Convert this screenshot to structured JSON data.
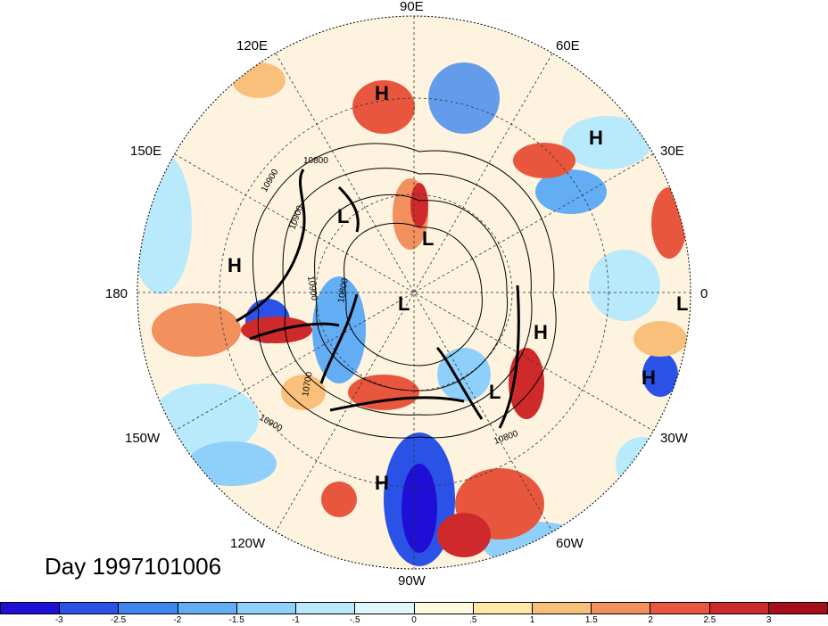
{
  "date_label": "Day 1997101006",
  "lon_labels": {
    "n90E": "90E",
    "n60E": "60E",
    "n30E": "30E",
    "n0": "0",
    "n30W": "30W",
    "n60W": "60W",
    "n90W": "90W",
    "n120W": "120W",
    "n150W": "150W",
    "n180": "180",
    "n150E": "150E",
    "n120E": "120E"
  },
  "pressure_centers": {
    "h1": "H",
    "h2": "H",
    "h3": "H",
    "h4": "H",
    "h5": "H",
    "h6": "H",
    "l1": "L",
    "l2": "L",
    "l3": "L",
    "l4": "L",
    "l5": "L"
  },
  "contour_labels": {
    "c1": "10800",
    "c2": "10900",
    "c3": "10900",
    "c4": "10800",
    "c5": "10900",
    "c6": "10700",
    "c7": "10900",
    "c8": "10800"
  },
  "colorbar": {
    "colors": [
      "#1f0fd6",
      "#2a52e6",
      "#3d86ee",
      "#63adf5",
      "#8fd0fa",
      "#b8eafc",
      "#e0f7fe",
      "#fffbe0",
      "#ffe9a8",
      "#f9c07c",
      "#f2905e",
      "#e8563e",
      "#cf2a2b",
      "#a50e1b"
    ],
    "ticks": [
      "-3",
      "-2.5",
      "-2",
      "-1.5",
      "-1",
      "-.5",
      "0",
      ".5",
      "1",
      "1.5",
      "2",
      "2.5",
      "3"
    ]
  }
}
